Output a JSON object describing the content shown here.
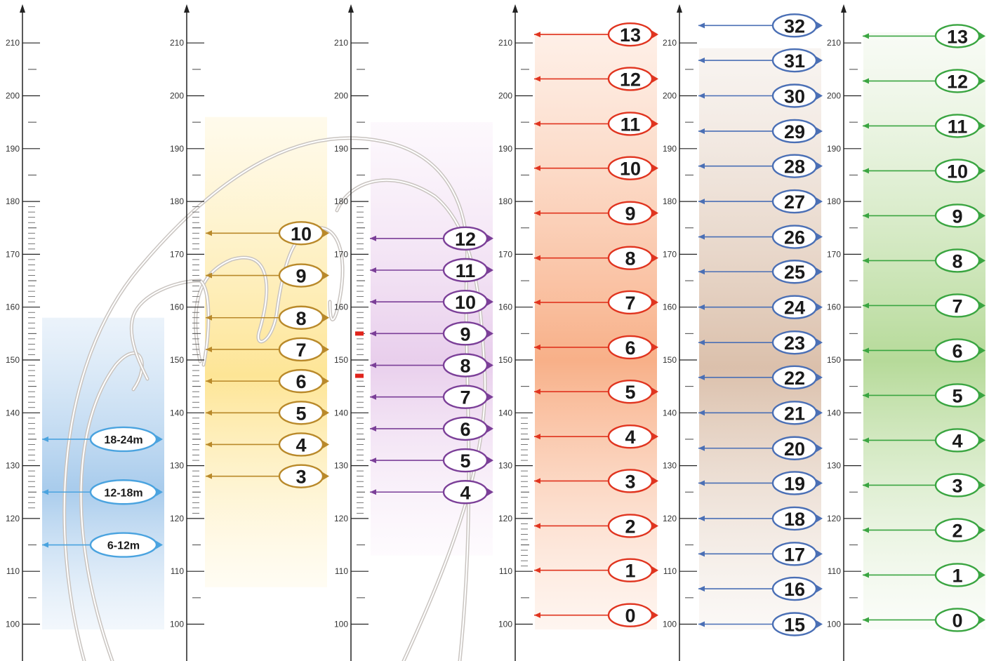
{
  "axis_ticks": [
    100,
    110,
    120,
    130,
    140,
    150,
    160,
    170,
    180,
    190,
    200,
    210
  ],
  "columns": [
    {
      "id": "col-1",
      "color": "#4aa3df",
      "band": {
        "from_top": "#dbe9f7",
        "to_bottom": "#9fc6ea",
        "from": 99,
        "to": 158
      },
      "fine_ticks": {
        "from": 122,
        "to": 180,
        "step": 1
      },
      "markers": [
        {
          "label": "18-24m",
          "value": 135
        },
        {
          "label": "12-18m",
          "value": 125
        },
        {
          "label": "6-12m",
          "value": 115
        }
      ]
    },
    {
      "id": "col-2",
      "color": "#b9892a",
      "band": {
        "from_top": "#fff7dc",
        "to_bottom": "#fde28a",
        "from": 107,
        "to": 196
      },
      "fine_ticks": {
        "from": 120,
        "to": 180,
        "step": 1
      },
      "markers": [
        {
          "label": "10",
          "value": 174
        },
        {
          "label": "9",
          "value": 166
        },
        {
          "label": "8",
          "value": 158
        },
        {
          "label": "7",
          "value": 152
        },
        {
          "label": "6",
          "value": 146
        },
        {
          "label": "5",
          "value": 140
        },
        {
          "label": "4",
          "value": 134
        },
        {
          "label": "3",
          "value": 128
        }
      ]
    },
    {
      "id": "col-3",
      "color": "#7b3f98",
      "band": {
        "from_top": "#fbf3fb",
        "to_bottom": "#e6c9ea",
        "from": 113,
        "to": 195
      },
      "fine_ticks": {
        "from": 121,
        "to": 180,
        "step": 1
      },
      "red_marks": [
        155,
        147
      ],
      "markers": [
        {
          "label": "12",
          "value": 173
        },
        {
          "label": "11",
          "value": 167
        },
        {
          "label": "10",
          "value": 161
        },
        {
          "label": "9",
          "value": 155
        },
        {
          "label": "8",
          "value": 149
        },
        {
          "label": "7",
          "value": 143
        },
        {
          "label": "6",
          "value": 137
        },
        {
          "label": "5",
          "value": 131
        },
        {
          "label": "4",
          "value": 125
        }
      ]
    },
    {
      "id": "col-4",
      "color": "#e0341f",
      "band": {
        "from_top": "#fde3d4",
        "to_bottom": "#f7a77b",
        "from": 99,
        "to": 212
      },
      "fine_ticks": {
        "from": 110,
        "to": 140,
        "step": 1
      },
      "markers": [
        {
          "label": "13",
          "value": 211.6
        },
        {
          "label": "12",
          "value": 203.2
        },
        {
          "label": "11",
          "value": 194.7
        },
        {
          "label": "10",
          "value": 186.3
        },
        {
          "label": "9",
          "value": 177.8
        },
        {
          "label": "8",
          "value": 169.3
        },
        {
          "label": "7",
          "value": 160.9
        },
        {
          "label": "6",
          "value": 152.4
        },
        {
          "label": "5",
          "value": 144.0
        },
        {
          "label": "4",
          "value": 135.5
        },
        {
          "label": "3",
          "value": 127.1
        },
        {
          "label": "2",
          "value": 118.6
        },
        {
          "label": "1",
          "value": 110.2
        },
        {
          "label": "0",
          "value": 101.7
        }
      ]
    },
    {
      "id": "col-5",
      "color": "#4a6fb5",
      "band": {
        "from_top": "#f3ece6",
        "to_bottom": "#d7b9a2",
        "from": 99,
        "to": 209
      },
      "markers": [
        {
          "label": "32",
          "value": 213.3
        },
        {
          "label": "31",
          "value": 206.7
        },
        {
          "label": "30",
          "value": 200.0
        },
        {
          "label": "29",
          "value": 193.3
        },
        {
          "label": "28",
          "value": 186.7
        },
        {
          "label": "27",
          "value": 180.0
        },
        {
          "label": "26",
          "value": 173.3
        },
        {
          "label": "25",
          "value": 166.7
        },
        {
          "label": "24",
          "value": 160.0
        },
        {
          "label": "23",
          "value": 153.3
        },
        {
          "label": "22",
          "value": 146.7
        },
        {
          "label": "21",
          "value": 140.0
        },
        {
          "label": "20",
          "value": 133.3
        },
        {
          "label": "19",
          "value": 126.7
        },
        {
          "label": "18",
          "value": 120.0
        },
        {
          "label": "17",
          "value": 113.3
        },
        {
          "label": "16",
          "value": 106.7
        },
        {
          "label": "15",
          "value": 100.0
        }
      ]
    },
    {
      "id": "col-6",
      "color": "#3aa541",
      "band": {
        "from_top": "#f3f8ee",
        "to_bottom": "#aed68e",
        "from": 99,
        "to": 212
      },
      "markers": [
        {
          "label": "13",
          "value": 211.3
        },
        {
          "label": "12",
          "value": 202.8
        },
        {
          "label": "11",
          "value": 194.3
        },
        {
          "label": "10",
          "value": 185.8
        },
        {
          "label": "9",
          "value": 177.3
        },
        {
          "label": "8",
          "value": 168.8
        },
        {
          "label": "7",
          "value": 160.3
        },
        {
          "label": "6",
          "value": 151.8
        },
        {
          "label": "5",
          "value": 143.3
        },
        {
          "label": "4",
          "value": 134.8
        },
        {
          "label": "3",
          "value": 126.3
        },
        {
          "label": "2",
          "value": 117.8
        },
        {
          "label": "1",
          "value": 109.3
        },
        {
          "label": "0",
          "value": 100.8
        }
      ]
    }
  ]
}
